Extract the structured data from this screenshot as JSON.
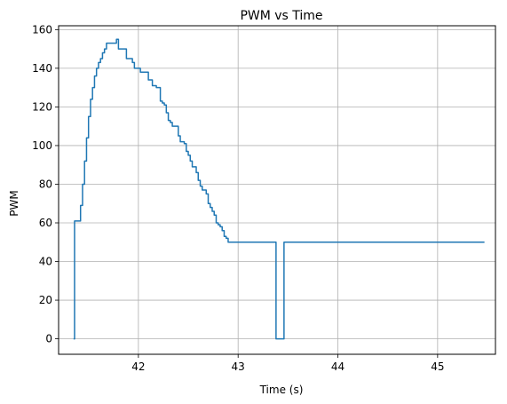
{
  "chart_data": {
    "type": "line",
    "title": "PWM vs Time",
    "xlabel": "Time (s)",
    "ylabel": "PWM",
    "xlim": [
      41.2,
      45.58
    ],
    "ylim": [
      -8,
      162
    ],
    "xticks": [
      42,
      43,
      44,
      45
    ],
    "yticks": [
      0,
      20,
      40,
      60,
      80,
      100,
      120,
      140,
      160
    ],
    "grid": true,
    "series": [
      {
        "color": "#1f77b4",
        "step": true,
        "x": [
          41.35,
          41.36,
          41.37,
          41.42,
          41.44,
          41.46,
          41.48,
          41.5,
          41.52,
          41.54,
          41.56,
          41.58,
          41.6,
          41.62,
          41.64,
          41.66,
          41.68,
          41.7,
          41.72,
          41.74,
          41.78,
          41.8,
          41.82,
          41.84,
          41.88,
          41.9,
          41.94,
          41.96,
          41.99,
          42.02,
          42.06,
          42.1,
          42.14,
          42.18,
          42.22,
          42.24,
          42.26,
          42.28,
          42.3,
          42.32,
          42.34,
          42.36,
          42.4,
          42.42,
          42.46,
          42.48,
          42.5,
          42.52,
          42.54,
          42.58,
          42.6,
          42.62,
          42.64,
          42.66,
          42.68,
          42.7,
          42.72,
          42.74,
          42.76,
          42.78,
          42.8,
          42.82,
          42.84,
          42.86,
          42.88,
          42.9,
          42.92,
          42.94,
          42.96,
          43.38,
          43.46,
          45.47
        ],
        "y": [
          0,
          61,
          61,
          69,
          80,
          92,
          104,
          115,
          124,
          130,
          136,
          140,
          143,
          145,
          148,
          150,
          153,
          153,
          153,
          153,
          155,
          150,
          150,
          150,
          145,
          145,
          143,
          140,
          140,
          138,
          138,
          134,
          131,
          130,
          123,
          122,
          121,
          117,
          113,
          112,
          110,
          110,
          105,
          102,
          101,
          97,
          95,
          92,
          89,
          86,
          82,
          79,
          77,
          77,
          75,
          70,
          68,
          66,
          64,
          60,
          59,
          58,
          56,
          53,
          52,
          50,
          50,
          50,
          50,
          0,
          50,
          50
        ]
      }
    ]
  }
}
